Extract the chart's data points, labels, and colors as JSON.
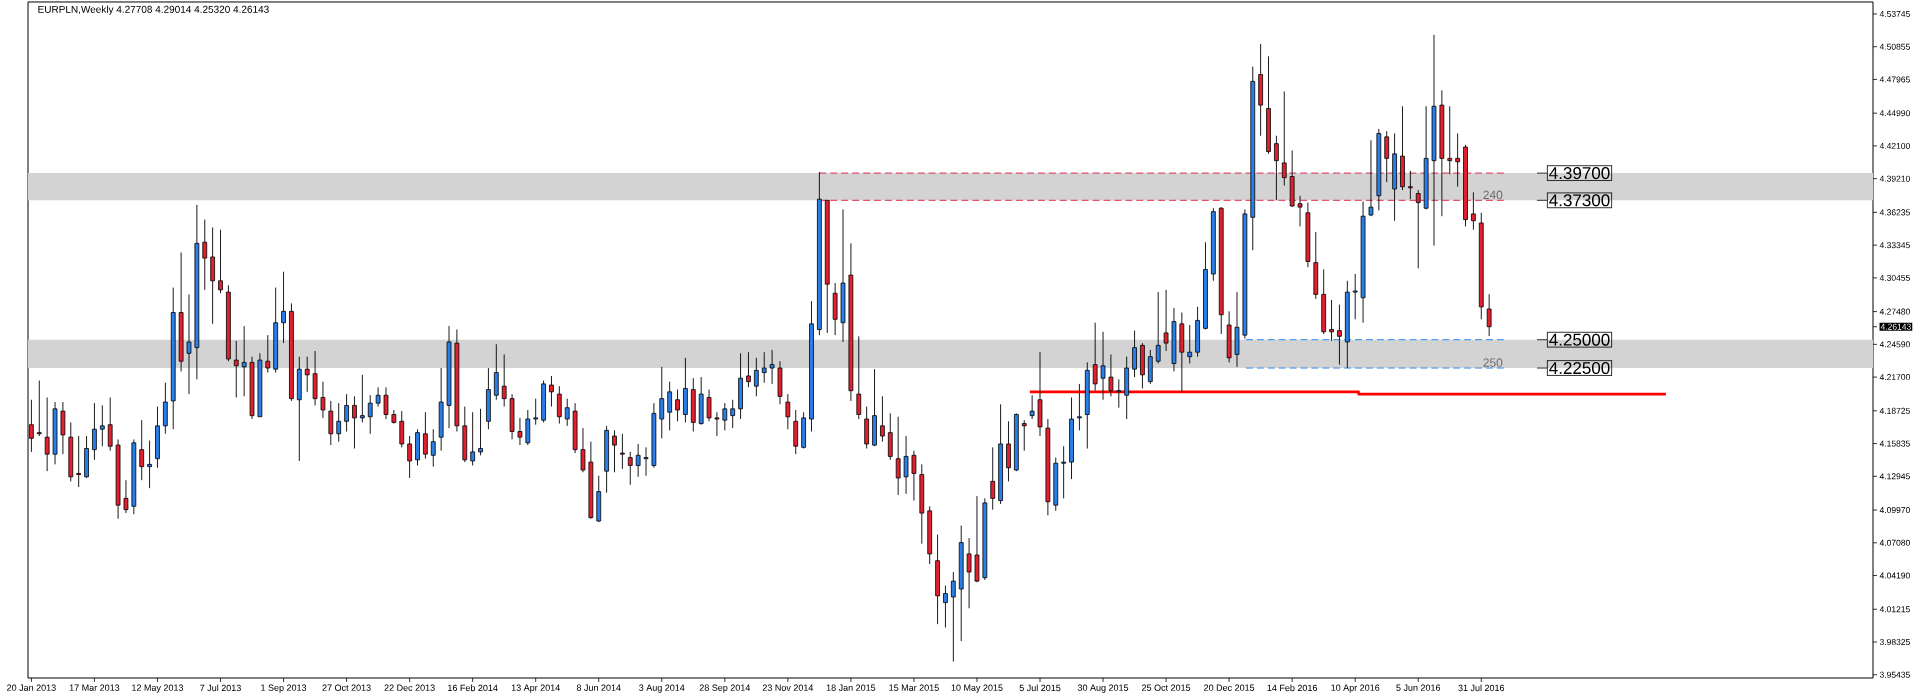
{
  "chart_data": {
    "type": "candlestick",
    "title": "EURPLN,Weekly  4.27708 4.29014 4.25320 4.26143",
    "x": [
      "2013-01-20",
      "2013-01-27",
      "2013-02-03",
      "2013-02-10",
      "2013-02-17",
      "2013-02-24",
      "2013-03-03",
      "2013-03-10",
      "2013-03-17",
      "2013-03-24",
      "2013-03-31",
      "2013-04-07",
      "2013-04-14",
      "2013-04-21",
      "2013-04-28",
      "2013-05-05",
      "2013-05-12",
      "2013-05-19",
      "2013-05-26",
      "2013-06-02",
      "2013-06-09",
      "2013-06-16",
      "2013-06-23",
      "2013-06-30",
      "2013-07-07",
      "2013-07-14",
      "2013-07-21",
      "2013-07-28",
      "2013-08-04",
      "2013-08-11",
      "2013-08-18",
      "2013-08-25",
      "2013-09-01",
      "2013-09-08",
      "2013-09-15",
      "2013-09-22",
      "2013-09-29",
      "2013-10-06",
      "2013-10-13",
      "2013-10-20",
      "2013-10-27",
      "2013-11-03",
      "2013-11-10",
      "2013-11-17",
      "2013-11-24",
      "2013-12-01",
      "2013-12-08",
      "2013-12-15",
      "2013-12-22",
      "2013-12-29",
      "2014-01-05",
      "2014-01-12",
      "2014-01-19",
      "2014-01-26",
      "2014-02-02",
      "2014-02-09",
      "2014-02-16",
      "2014-02-23",
      "2014-03-02",
      "2014-03-09",
      "2014-03-16",
      "2014-03-23",
      "2014-03-30",
      "2014-04-06",
      "2014-04-13",
      "2014-04-20",
      "2014-04-27",
      "2014-05-04",
      "2014-05-11",
      "2014-05-18",
      "2014-05-25",
      "2014-06-01",
      "2014-06-08",
      "2014-06-15",
      "2014-06-22",
      "2014-06-29",
      "2014-07-06",
      "2014-07-13",
      "2014-07-20",
      "2014-07-27",
      "2014-08-03",
      "2014-08-10",
      "2014-08-17",
      "2014-08-24",
      "2014-08-31",
      "2014-09-07",
      "2014-09-14",
      "2014-09-21",
      "2014-09-28",
      "2014-10-05",
      "2014-10-12",
      "2014-10-19",
      "2014-10-26",
      "2014-11-02",
      "2014-11-09",
      "2014-11-16",
      "2014-11-23",
      "2014-11-30",
      "2014-12-07",
      "2014-12-14",
      "2014-12-21",
      "2014-12-28",
      "2015-01-04",
      "2015-01-11",
      "2015-01-18",
      "2015-01-25",
      "2015-02-01",
      "2015-02-08",
      "2015-02-15",
      "2015-02-22",
      "2015-03-01",
      "2015-03-08",
      "2015-03-15",
      "2015-03-22",
      "2015-03-29",
      "2015-04-05",
      "2015-04-12",
      "2015-04-19",
      "2015-04-26",
      "2015-05-03",
      "2015-05-10",
      "2015-05-17",
      "2015-05-24",
      "2015-05-31",
      "2015-06-07",
      "2015-06-14",
      "2015-06-21",
      "2015-06-28",
      "2015-07-05",
      "2015-07-12",
      "2015-07-19",
      "2015-07-26",
      "2015-08-02",
      "2015-08-09",
      "2015-08-16",
      "2015-08-23",
      "2015-08-30",
      "2015-09-06",
      "2015-09-13",
      "2015-09-20",
      "2015-09-27",
      "2015-10-04",
      "2015-10-11",
      "2015-10-18",
      "2015-10-25",
      "2015-11-01",
      "2015-11-08",
      "2015-11-15",
      "2015-11-22",
      "2015-11-29",
      "2015-12-06",
      "2015-12-13",
      "2015-12-20",
      "2015-12-27",
      "2016-01-03",
      "2016-01-10",
      "2016-01-17",
      "2016-01-24",
      "2016-01-31",
      "2016-02-07",
      "2016-02-14",
      "2016-02-21",
      "2016-02-28",
      "2016-03-06",
      "2016-03-13",
      "2016-03-20",
      "2016-03-27",
      "2016-04-03",
      "2016-04-10",
      "2016-04-17",
      "2016-04-24",
      "2016-05-01",
      "2016-05-08",
      "2016-05-15",
      "2016-05-22",
      "2016-05-29",
      "2016-06-05",
      "2016-06-12",
      "2016-06-19",
      "2016-06-26",
      "2016-07-03",
      "2016-07-10",
      "2016-07-17",
      "2016-07-24",
      "2016-07-31",
      "2016-08-07"
    ],
    "ohlc": [
      [
        4.175,
        4.197,
        4.151,
        4.163
      ],
      [
        4.168,
        4.214,
        4.165,
        4.167
      ],
      [
        4.164,
        4.199,
        4.134,
        4.149
      ],
      [
        4.149,
        4.195,
        4.14,
        4.189
      ],
      [
        4.187,
        4.195,
        4.149,
        4.166
      ],
      [
        4.164,
        4.177,
        4.125,
        4.129
      ],
      [
        4.132,
        4.165,
        4.12,
        4.131
      ],
      [
        4.129,
        4.165,
        4.128,
        4.154
      ],
      [
        4.153,
        4.194,
        4.144,
        4.171
      ],
      [
        4.171,
        4.192,
        4.156,
        4.174
      ],
      [
        4.175,
        4.199,
        4.152,
        4.156
      ],
      [
        4.157,
        4.162,
        4.092,
        4.104
      ],
      [
        4.11,
        4.126,
        4.097,
        4.1
      ],
      [
        4.103,
        4.162,
        4.096,
        4.159
      ],
      [
        4.153,
        4.179,
        4.126,
        4.138
      ],
      [
        4.138,
        4.161,
        4.119,
        4.14
      ],
      [
        4.145,
        4.191,
        4.137,
        4.174
      ],
      [
        4.174,
        4.212,
        4.167,
        4.195
      ],
      [
        4.196,
        4.296,
        4.171,
        4.274
      ],
      [
        4.274,
        4.327,
        4.222,
        4.231
      ],
      [
        4.238,
        4.29,
        4.202,
        4.248
      ],
      [
        4.243,
        4.369,
        4.215,
        4.335
      ],
      [
        4.336,
        4.356,
        4.294,
        4.322
      ],
      [
        4.323,
        4.349,
        4.264,
        4.302
      ],
      [
        4.302,
        4.347,
        4.291,
        4.294
      ],
      [
        4.292,
        4.298,
        4.231,
        4.233
      ],
      [
        4.232,
        4.249,
        4.199,
        4.227
      ],
      [
        4.226,
        4.262,
        4.2,
        4.23
      ],
      [
        4.23,
        4.235,
        4.18,
        4.183
      ],
      [
        4.182,
        4.238,
        4.182,
        4.232
      ],
      [
        4.231,
        4.254,
        4.221,
        4.225
      ],
      [
        4.224,
        4.296,
        4.221,
        4.265
      ],
      [
        4.265,
        4.31,
        4.247,
        4.275
      ],
      [
        4.275,
        4.282,
        4.196,
        4.198
      ],
      [
        4.197,
        4.235,
        4.143,
        4.224
      ],
      [
        4.224,
        4.235,
        4.204,
        4.219
      ],
      [
        4.22,
        4.24,
        4.192,
        4.198
      ],
      [
        4.199,
        4.213,
        4.181,
        4.188
      ],
      [
        4.187,
        4.196,
        4.157,
        4.167
      ],
      [
        4.167,
        4.194,
        4.16,
        4.178
      ],
      [
        4.178,
        4.202,
        4.169,
        4.192
      ],
      [
        4.192,
        4.2,
        4.154,
        4.181
      ],
      [
        4.181,
        4.219,
        4.177,
        4.183
      ],
      [
        4.182,
        4.201,
        4.167,
        4.194
      ],
      [
        4.194,
        4.208,
        4.191,
        4.201
      ],
      [
        4.201,
        4.208,
        4.18,
        4.184
      ],
      [
        4.184,
        4.188,
        4.176,
        4.177
      ],
      [
        4.178,
        4.187,
        4.155,
        4.158
      ],
      [
        4.158,
        4.165,
        4.128,
        4.143
      ],
      [
        4.144,
        4.171,
        4.139,
        4.168
      ],
      [
        4.167,
        4.186,
        4.145,
        4.149
      ],
      [
        4.148,
        4.171,
        4.138,
        4.16
      ],
      [
        4.164,
        4.225,
        4.152,
        4.195
      ],
      [
        4.192,
        4.262,
        4.172,
        4.248
      ],
      [
        4.247,
        4.259,
        4.169,
        4.174
      ],
      [
        4.174,
        4.191,
        4.142,
        4.144
      ],
      [
        4.143,
        4.186,
        4.139,
        4.151
      ],
      [
        4.151,
        4.189,
        4.148,
        4.154
      ],
      [
        4.178,
        4.225,
        4.171,
        4.206
      ],
      [
        4.201,
        4.246,
        4.197,
        4.221
      ],
      [
        4.209,
        4.237,
        4.191,
        4.198
      ],
      [
        4.198,
        4.202,
        4.162,
        4.169
      ],
      [
        4.169,
        4.181,
        4.157,
        4.164
      ],
      [
        4.159,
        4.188,
        4.157,
        4.18
      ],
      [
        4.18,
        4.198,
        4.175,
        4.181
      ],
      [
        4.179,
        4.214,
        4.177,
        4.211
      ],
      [
        4.21,
        4.218,
        4.191,
        4.204
      ],
      [
        4.202,
        4.209,
        4.176,
        4.182
      ],
      [
        4.18,
        4.198,
        4.174,
        4.19
      ],
      [
        4.187,
        4.194,
        4.15,
        4.153
      ],
      [
        4.153,
        4.172,
        4.133,
        4.135
      ],
      [
        4.142,
        4.16,
        4.092,
        4.093
      ],
      [
        4.09,
        4.13,
        4.089,
        4.116
      ],
      [
        4.134,
        4.174,
        4.115,
        4.17
      ],
      [
        4.165,
        4.17,
        4.133,
        4.157
      ],
      [
        4.15,
        4.167,
        4.136,
        4.149
      ],
      [
        4.146,
        4.151,
        4.122,
        4.139
      ],
      [
        4.139,
        4.158,
        4.129,
        4.148
      ],
      [
        4.145,
        4.155,
        4.13,
        4.146
      ],
      [
        4.139,
        4.194,
        4.137,
        4.185
      ],
      [
        4.18,
        4.226,
        4.163,
        4.198
      ],
      [
        4.186,
        4.213,
        4.17,
        4.204
      ],
      [
        4.197,
        4.206,
        4.178,
        4.188
      ],
      [
        4.184,
        4.234,
        4.177,
        4.207
      ],
      [
        4.206,
        4.216,
        4.169,
        4.177
      ],
      [
        4.176,
        4.217,
        4.175,
        4.202
      ],
      [
        4.199,
        4.206,
        4.178,
        4.181
      ],
      [
        4.181,
        4.186,
        4.165,
        4.18
      ],
      [
        4.179,
        4.194,
        4.17,
        4.189
      ],
      [
        4.183,
        4.197,
        4.172,
        4.189
      ],
      [
        4.189,
        4.238,
        4.18,
        4.216
      ],
      [
        4.218,
        4.239,
        4.208,
        4.213
      ],
      [
        4.209,
        4.234,
        4.2,
        4.223
      ],
      [
        4.221,
        4.239,
        4.212,
        4.225
      ],
      [
        4.225,
        4.241,
        4.211,
        4.228
      ],
      [
        4.225,
        4.231,
        4.193,
        4.2
      ],
      [
        4.195,
        4.202,
        4.171,
        4.182
      ],
      [
        4.178,
        4.188,
        4.149,
        4.156
      ],
      [
        4.155,
        4.186,
        4.154,
        4.181
      ],
      [
        4.18,
        4.284,
        4.169,
        4.264
      ],
      [
        4.259,
        4.398,
        4.254,
        4.374
      ],
      [
        4.373,
        4.373,
        4.256,
        4.299
      ],
      [
        4.291,
        4.3,
        4.254,
        4.268
      ],
      [
        4.265,
        4.365,
        4.248,
        4.3
      ],
      [
        4.307,
        4.335,
        4.196,
        4.205
      ],
      [
        4.202,
        4.253,
        4.18,
        4.184
      ],
      [
        4.18,
        4.191,
        4.154,
        4.158
      ],
      [
        4.157,
        4.224,
        4.156,
        4.183
      ],
      [
        4.174,
        4.2,
        4.16,
        4.165
      ],
      [
        4.168,
        4.185,
        4.144,
        4.147
      ],
      [
        4.145,
        4.182,
        4.113,
        4.128
      ],
      [
        4.129,
        4.165,
        4.114,
        4.147
      ],
      [
        4.148,
        4.152,
        4.108,
        4.132
      ],
      [
        4.131,
        4.14,
        4.07,
        4.097
      ],
      [
        4.099,
        4.103,
        4.052,
        4.061
      ],
      [
        4.055,
        4.078,
        3.999,
        4.024
      ],
      [
        4.018,
        4.033,
        3.996,
        4.026
      ],
      [
        4.023,
        4.045,
        3.966,
        4.037
      ],
      [
        4.03,
        4.086,
        3.984,
        4.071
      ],
      [
        4.061,
        4.075,
        4.013,
        4.045
      ],
      [
        4.06,
        4.112,
        4.036,
        4.037
      ],
      [
        4.04,
        4.11,
        4.038,
        4.106
      ],
      [
        4.125,
        4.155,
        4.1,
        4.11
      ],
      [
        4.108,
        4.193,
        4.105,
        4.158
      ],
      [
        4.158,
        4.178,
        4.125,
        4.137
      ],
      [
        4.135,
        4.185,
        4.134,
        4.184
      ],
      [
        4.176,
        4.179,
        4.152,
        4.174
      ],
      [
        4.183,
        4.201,
        4.18,
        4.187
      ],
      [
        4.197,
        4.239,
        4.165,
        4.173
      ],
      [
        4.172,
        4.18,
        4.095,
        4.107
      ],
      [
        4.104,
        4.146,
        4.099,
        4.141
      ],
      [
        4.141,
        4.156,
        4.11,
        4.142
      ],
      [
        4.142,
        4.199,
        4.127,
        4.18
      ],
      [
        4.181,
        4.211,
        4.17,
        4.182
      ],
      [
        4.184,
        4.23,
        4.154,
        4.223
      ],
      [
        4.228,
        4.265,
        4.205,
        4.211
      ],
      [
        4.216,
        4.257,
        4.197,
        4.227
      ],
      [
        4.217,
        4.237,
        4.2,
        4.205
      ],
      [
        4.204,
        4.215,
        4.19,
        4.205
      ],
      [
        4.201,
        4.235,
        4.18,
        4.225
      ],
      [
        4.224,
        4.258,
        4.217,
        4.243
      ],
      [
        4.245,
        4.247,
        4.207,
        4.219
      ],
      [
        4.213,
        4.241,
        4.211,
        4.235
      ],
      [
        4.231,
        4.292,
        4.229,
        4.245
      ],
      [
        4.256,
        4.294,
        4.24,
        4.247
      ],
      [
        4.229,
        4.278,
        4.222,
        4.266
      ],
      [
        4.264,
        4.274,
        4.204,
        4.239
      ],
      [
        4.235,
        4.263,
        4.229,
        4.239
      ],
      [
        4.239,
        4.279,
        4.235,
        4.267
      ],
      [
        4.26,
        4.336,
        4.259,
        4.312
      ],
      [
        4.308,
        4.366,
        4.302,
        4.363
      ],
      [
        4.366,
        4.367,
        4.255,
        4.272
      ],
      [
        4.263,
        4.275,
        4.23,
        4.234
      ],
      [
        4.237,
        4.292,
        4.226,
        4.261
      ],
      [
        4.254,
        4.365,
        4.251,
        4.361
      ],
      [
        4.358,
        4.491,
        4.329,
        4.478
      ],
      [
        4.484,
        4.511,
        4.43,
        4.457
      ],
      [
        4.454,
        4.5,
        4.414,
        4.416
      ],
      [
        4.423,
        4.43,
        4.373,
        4.408
      ],
      [
        4.406,
        4.469,
        4.386,
        4.393
      ],
      [
        4.394,
        4.417,
        4.367,
        4.368
      ],
      [
        4.37,
        4.377,
        4.35,
        4.367
      ],
      [
        4.362,
        4.371,
        4.314,
        4.319
      ],
      [
        4.318,
        4.345,
        4.286,
        4.29
      ],
      [
        4.29,
        4.312,
        4.255,
        4.257
      ],
      [
        4.259,
        4.285,
        4.249,
        4.257
      ],
      [
        4.258,
        4.281,
        4.228,
        4.253
      ],
      [
        4.248,
        4.302,
        4.225,
        4.292
      ],
      [
        4.292,
        4.308,
        4.268,
        4.293
      ],
      [
        4.287,
        4.372,
        4.265,
        4.359
      ],
      [
        4.36,
        4.426,
        4.359,
        4.367
      ],
      [
        4.377,
        4.436,
        4.364,
        4.432
      ],
      [
        4.429,
        4.434,
        4.389,
        4.41
      ],
      [
        4.383,
        4.432,
        4.355,
        4.414
      ],
      [
        4.412,
        4.456,
        4.382,
        4.385
      ],
      [
        4.385,
        4.399,
        4.374,
        4.384
      ],
      [
        4.379,
        4.382,
        4.313,
        4.371
      ],
      [
        4.366,
        4.456,
        4.365,
        4.41
      ],
      [
        4.408,
        4.519,
        4.333,
        4.456
      ],
      [
        4.457,
        4.47,
        4.359,
        4.41
      ],
      [
        4.41,
        4.456,
        4.396,
        4.408
      ],
      [
        4.41,
        4.432,
        4.385,
        4.407
      ],
      [
        4.42,
        4.422,
        4.35,
        4.356
      ],
      [
        4.361,
        4.38,
        4.347,
        4.355
      ],
      [
        4.353,
        4.362,
        4.268,
        4.279
      ],
      [
        4.27708,
        4.29014,
        4.2532,
        4.26143
      ]
    ],
    "colors": [
      "#e3202e",
      "#e3202e",
      "#e3202e",
      "#2a7ee8",
      "#e3202e",
      "#e3202e",
      "#e3202e",
      "#2a7ee8",
      "#2a7ee8",
      "#2a7ee8",
      "#e3202e",
      "#e3202e",
      "#e3202e",
      "#2a7ee8",
      "#e3202e",
      "#2a7ee8",
      "#2a7ee8",
      "#2a7ee8",
      "#2a7ee8",
      "#e3202e",
      "#2a7ee8",
      "#2a7ee8",
      "#e3202e",
      "#e3202e",
      "#e3202e",
      "#e3202e",
      "#e3202e",
      "#2a7ee8",
      "#e3202e",
      "#2a7ee8",
      "#e3202e",
      "#2a7ee8",
      "#2a7ee8",
      "#e3202e",
      "#2a7ee8",
      "#e3202e",
      "#e3202e",
      "#e3202e",
      "#e3202e",
      "#2a7ee8",
      "#2a7ee8",
      "#e3202e",
      "#2a7ee8",
      "#2a7ee8",
      "#2a7ee8",
      "#e3202e",
      "#e3202e",
      "#e3202e",
      "#e3202e",
      "#2a7ee8",
      "#e3202e",
      "#2a7ee8",
      "#2a7ee8",
      "#2a7ee8",
      "#e3202e",
      "#e3202e",
      "#2a7ee8",
      "#2a7ee8",
      "#2a7ee8",
      "#2a7ee8",
      "#e3202e",
      "#e3202e",
      "#e3202e",
      "#2a7ee8",
      "#2a7ee8",
      "#2a7ee8",
      "#e3202e",
      "#e3202e",
      "#2a7ee8",
      "#e3202e",
      "#e3202e",
      "#e3202e",
      "#2a7ee8",
      "#2a7ee8",
      "#e3202e",
      "#e3202e",
      "#e3202e",
      "#2a7ee8",
      "#2a7ee8",
      "#2a7ee8",
      "#2a7ee8",
      "#2a7ee8",
      "#e3202e",
      "#2a7ee8",
      "#e3202e",
      "#2a7ee8",
      "#e3202e",
      "#e3202e",
      "#2a7ee8",
      "#2a7ee8",
      "#2a7ee8",
      "#e3202e",
      "#2a7ee8",
      "#2a7ee8",
      "#2a7ee8",
      "#e3202e",
      "#e3202e",
      "#e3202e",
      "#2a7ee8",
      "#2a7ee8",
      "#2a7ee8",
      "#e3202e",
      "#e3202e",
      "#2a7ee8",
      "#e3202e",
      "#e3202e",
      "#e3202e",
      "#2a7ee8",
      "#e3202e",
      "#e3202e",
      "#e3202e",
      "#2a7ee8",
      "#e3202e",
      "#e3202e",
      "#e3202e",
      "#e3202e",
      "#2a7ee8",
      "#2a7ee8",
      "#2a7ee8",
      "#e3202e",
      "#e3202e",
      "#2a7ee8",
      "#e3202e",
      "#2a7ee8",
      "#e3202e",
      "#2a7ee8",
      "#e3202e",
      "#2a7ee8",
      "#e3202e",
      "#e3202e",
      "#2a7ee8",
      "#2a7ee8",
      "#2a7ee8",
      "#2a7ee8",
      "#2a7ee8",
      "#e3202e",
      "#2a7ee8",
      "#e3202e",
      "#2a7ee8",
      "#2a7ee8",
      "#2a7ee8",
      "#e3202e",
      "#2a7ee8",
      "#2a7ee8",
      "#e3202e",
      "#2a7ee8",
      "#e3202e",
      "#2a7ee8",
      "#2a7ee8",
      "#2a7ee8",
      "#2a7ee8",
      "#e3202e",
      "#e3202e",
      "#2a7ee8",
      "#2a7ee8",
      "#2a7ee8",
      "#e3202e",
      "#e3202e",
      "#e3202e",
      "#e3202e",
      "#e3202e",
      "#e3202e",
      "#e3202e",
      "#e3202e",
      "#e3202e",
      "#e3202e",
      "#e3202e",
      "#2a7ee8",
      "#2a7ee8",
      "#2a7ee8",
      "#2a7ee8",
      "#2a7ee8",
      "#e3202e",
      "#2a7ee8",
      "#e3202e",
      "#e3202e",
      "#e3202e",
      "#2a7ee8",
      "#2a7ee8",
      "#e3202e",
      "#e3202e",
      "#e3202e",
      "#e3202e",
      "#e3202e",
      "#e3202e",
      "#e3202e"
    ],
    "series": [
      {
        "type": "line",
        "x": [
          "2014-12-21",
          "2016-08-20"
        ],
        "values": [
          4.397,
          4.397
        ],
        "color": "#e0284a",
        "line_style": "dashed"
      },
      {
        "type": "line",
        "x": [
          "2014-12-21",
          "2016-08-20"
        ],
        "values": [
          4.373,
          4.373
        ],
        "color": "#e0284a",
        "line_style": "dashed"
      },
      {
        "type": "line",
        "x": [
          "2016-01-04",
          "2016-08-20"
        ],
        "values": [
          4.25,
          4.25
        ],
        "color": "#2b8cf0",
        "line_style": "dashed"
      },
      {
        "type": "line",
        "x": [
          "2016-01-04",
          "2016-08-20"
        ],
        "values": [
          4.225,
          4.225
        ],
        "color": "#2b8cf0",
        "line_style": "dashed"
      },
      {
        "type": "line",
        "x": [
          "2015-06-26",
          "2016-04-13",
          "2016-04-13",
          "2017-01-11"
        ],
        "values": [
          4.204,
          4.204,
          4.202,
          4.202
        ],
        "color": "#ff0000",
        "line_style": "solid"
      }
    ],
    "bands": [
      {
        "axis": "y",
        "from": 4.373,
        "to": 4.397,
        "label": "240",
        "color": "#d3d3d3"
      },
      {
        "axis": "y",
        "from": 4.225,
        "to": 4.25,
        "label": "250",
        "color": "#d3d3d3"
      }
    ],
    "annotations": [
      {
        "text": "4.39700",
        "x": "2016-08-20",
        "y": 4.397
      },
      {
        "text": "4.37300",
        "x": "2016-08-20",
        "y": 4.373
      },
      {
        "text": "4.25000",
        "x": "2016-08-20",
        "y": 4.25
      },
      {
        "text": "4.22500",
        "x": "2016-08-20",
        "y": 4.225
      }
    ],
    "xlim": [
      "2013-01-17",
      "2017-07-14"
    ],
    "xticks": [
      {
        "value": "2013-01-20",
        "label": "20 Jan 2013"
      },
      {
        "value": "2013-03-17",
        "label": "17 Mar 2013"
      },
      {
        "value": "2013-05-12",
        "label": "12 May 2013"
      },
      {
        "value": "2013-07-07",
        "label": "7 Jul 2013"
      },
      {
        "value": "2013-09-01",
        "label": "1 Sep 2013"
      },
      {
        "value": "2013-10-27",
        "label": "27 Oct 2013"
      },
      {
        "value": "2013-12-22",
        "label": "22 Dec 2013"
      },
      {
        "value": "2014-02-16",
        "label": "16 Feb 2014"
      },
      {
        "value": "2014-04-13",
        "label": "13 Apr 2014"
      },
      {
        "value": "2014-06-08",
        "label": "8 Jun 2014"
      },
      {
        "value": "2014-08-03",
        "label": "3 Aug 2014"
      },
      {
        "value": "2014-09-28",
        "label": "28 Sep 2014"
      },
      {
        "value": "2014-11-23",
        "label": "23 Nov 2014"
      },
      {
        "value": "2015-01-18",
        "label": "18 Jan 2015"
      },
      {
        "value": "2015-03-15",
        "label": "15 Mar 2015"
      },
      {
        "value": "2015-05-10",
        "label": "10 May 2015"
      },
      {
        "value": "2015-07-05",
        "label": "5 Jul 2015"
      },
      {
        "value": "2015-08-30",
        "label": "30 Aug 2015"
      },
      {
        "value": "2015-10-25",
        "label": "25 Oct 2015"
      },
      {
        "value": "2015-12-20",
        "label": "20 Dec 2015"
      },
      {
        "value": "2016-02-14",
        "label": "14 Feb 2016"
      },
      {
        "value": "2016-04-10",
        "label": "10 Apr 2016"
      },
      {
        "value": "2016-06-05",
        "label": "5 Jun 2016"
      },
      {
        "value": "2016-07-31",
        "label": "31 Jul 2016"
      }
    ],
    "ylim": [
      3.9515,
      4.548
    ],
    "yticks": [
      3.95435,
      3.98325,
      4.01215,
      {
        "value": 4.0419,
        "label": "4.04190"
      },
      {
        "value": 4.0708,
        "label": "4.07080"
      },
      {
        "value": 4.0997,
        "label": "4.09970"
      },
      4.12945,
      4.15835,
      4.18725,
      {
        "value": 4.217,
        "label": "4.21700"
      },
      {
        "value": 4.2459,
        "label": "4.24590"
      },
      4.26143,
      {
        "value": 4.2748,
        "label": "4.27480"
      },
      4.30455,
      4.33345,
      4.36235,
      {
        "value": 4.3921,
        "label": "4.39210"
      },
      {
        "value": 4.421,
        "label": "4.42100"
      },
      {
        "value": 4.4499,
        "label": "4.44990"
      },
      4.47965,
      4.50855,
      4.53745
    ]
  }
}
